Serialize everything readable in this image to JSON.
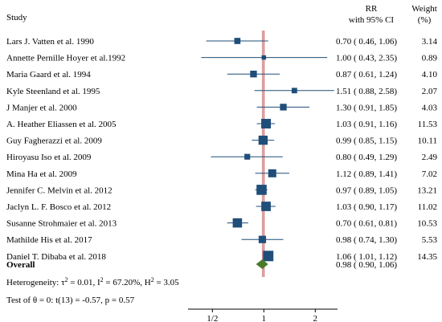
{
  "chart_data": {
    "type": "forest",
    "header": {
      "study": "Study",
      "rr": "RR",
      "ci": "with 95% CI",
      "weight": "Weight",
      "weight_unit": "(%)"
    },
    "colors": {
      "marker": "#1f4e79",
      "ci_line": "#1f4e79",
      "diamond": "#4a7a2a",
      "null_line": "#b03030",
      "overall_line": "#d08080"
    },
    "x_scale": "log",
    "xlim": [
      0.36,
      2.7
    ],
    "x_ticks": [
      0.5,
      1,
      2
    ],
    "x_tick_labels": [
      "1/2",
      "1",
      "2"
    ],
    "null_value": 1,
    "studies": [
      {
        "label": "Lars J. Vatten et al. 1990",
        "rr": 0.7,
        "lo": 0.46,
        "hi": 1.06,
        "ci_text": "0.70 ( 0.46, 1.06)",
        "weight": 3.14,
        "weight_text": "3.14"
      },
      {
        "label": "Annette Pernille Hoyer et al.1992",
        "rr": 1.0,
        "lo": 0.43,
        "hi": 2.35,
        "ci_text": "1.00 ( 0.43, 2.35)",
        "weight": 0.89,
        "weight_text": "0.89"
      },
      {
        "label": "Maria Gaard et al. 1994",
        "rr": 0.87,
        "lo": 0.61,
        "hi": 1.24,
        "ci_text": "0.87 ( 0.61, 1.24)",
        "weight": 4.1,
        "weight_text": "4.10"
      },
      {
        "label": "Kyle Steenland et al. 1995",
        "rr": 1.51,
        "lo": 0.88,
        "hi": 2.58,
        "ci_text": "1.51 ( 0.88, 2.58)",
        "weight": 2.07,
        "weight_text": "2.07"
      },
      {
        "label": "J Manjer et al. 2000",
        "rr": 1.3,
        "lo": 0.91,
        "hi": 1.85,
        "ci_text": "1.30 ( 0.91, 1.85)",
        "weight": 4.03,
        "weight_text": "4.03"
      },
      {
        "label": "A. Heather Eliassen et al. 2005",
        "rr": 1.03,
        "lo": 0.91,
        "hi": 1.16,
        "ci_text": "1.03 ( 0.91, 1.16)",
        "weight": 11.53,
        "weight_text": "11.53"
      },
      {
        "label": "Guy Fagherazzi et al. 2009",
        "rr": 0.99,
        "lo": 0.85,
        "hi": 1.15,
        "ci_text": "0.99 ( 0.85, 1.15)",
        "weight": 10.11,
        "weight_text": "10.11"
      },
      {
        "label": "Hiroyasu Iso et al. 2009",
        "rr": 0.8,
        "lo": 0.49,
        "hi": 1.29,
        "ci_text": "0.80 ( 0.49, 1.29)",
        "weight": 2.49,
        "weight_text": "2.49"
      },
      {
        "label": "Mina Ha et al. 2009",
        "rr": 1.12,
        "lo": 0.89,
        "hi": 1.41,
        "ci_text": "1.12 ( 0.89, 1.41)",
        "weight": 7.02,
        "weight_text": "7.02"
      },
      {
        "label": "Jennifer C. Melvin et al. 2012",
        "rr": 0.97,
        "lo": 0.89,
        "hi": 1.05,
        "ci_text": "0.97 ( 0.89, 1.05)",
        "weight": 13.21,
        "weight_text": "13.21"
      },
      {
        "label": "Jaclyn L. F. Bosco et al. 2012",
        "rr": 1.03,
        "lo": 0.9,
        "hi": 1.17,
        "ci_text": "1.03 ( 0.90, 1.17)",
        "weight": 11.02,
        "weight_text": "11.02"
      },
      {
        "label": "Susanne Strohmaier et al. 2013",
        "rr": 0.7,
        "lo": 0.61,
        "hi": 0.81,
        "ci_text": "0.70 ( 0.61, 0.81)",
        "weight": 10.53,
        "weight_text": "10.53"
      },
      {
        "label": "Mathilde His et al. 2017",
        "rr": 0.98,
        "lo": 0.74,
        "hi": 1.3,
        "ci_text": "0.98 ( 0.74, 1.30)",
        "weight": 5.53,
        "weight_text": "5.53"
      },
      {
        "label": "Daniel T. Dibaba et al. 2018",
        "rr": 1.06,
        "lo": 1.01,
        "hi": 1.12,
        "ci_text": "1.06 ( 1.01, 1.12)",
        "weight": 14.35,
        "weight_text": "14.35"
      }
    ],
    "overall": {
      "label": "Overall",
      "rr": 0.98,
      "lo": 0.9,
      "hi": 1.06,
      "ci_text": "0.98 ( 0.90, 1.06)"
    },
    "heterogeneity": {
      "prefix": "Heterogeneity: τ",
      "tau_sup": "2",
      "tau_val": " = 0.01, I",
      "i_sup": "2",
      "i_val": " = 67.20%, H",
      "h_sup": "2",
      "h_val": " = 3.05"
    },
    "test": "Test of θ = 0: t(13) = -0.57, p = 0.57"
  }
}
